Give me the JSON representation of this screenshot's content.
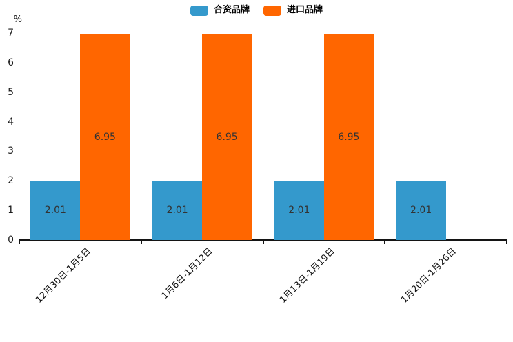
{
  "chart_data": {
    "type": "bar",
    "title": "",
    "ylabel": "%",
    "categories": [
      "12月30日-1月5日",
      "1月6日-1月12日",
      "1月13日-1月19日",
      "1月20日-1月26日"
    ],
    "series": [
      {
        "key": "joint-venture-brand",
        "name": "合资品牌",
        "color": "#3499CC",
        "values": [
          2.01,
          2.01,
          2.01,
          2.01
        ]
      },
      {
        "key": "imported-brand",
        "name": "进口品牌",
        "color": "#FF6600",
        "values": [
          6.95,
          6.95,
          6.95,
          null
        ]
      }
    ],
    "ylim": [
      0,
      7
    ],
    "yticks": [
      0,
      1,
      2,
      3,
      4,
      5,
      6,
      7
    ],
    "legend_position": "top-center",
    "grid": false,
    "bar_value_labels": true,
    "axis_color": "#141414",
    "value_label_color": "#333333"
  }
}
